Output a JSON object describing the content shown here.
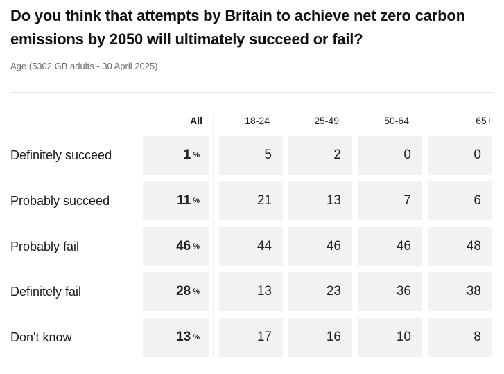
{
  "chart_data": {
    "type": "table",
    "title": "Do you think that attempts by Britain to achieve net zero carbon emissions by 2050 will ultimately succeed or fail?",
    "subtitle": "Age (5302 GB adults - 30 April 2025)",
    "columns": [
      "All",
      "18-24",
      "25-49",
      "50-64",
      "65+"
    ],
    "unit": "%",
    "rows": [
      {
        "label": "Definitely succeed",
        "values": [
          1,
          5,
          2,
          0,
          0
        ]
      },
      {
        "label": "Probably succeed",
        "values": [
          11,
          21,
          13,
          7,
          6
        ]
      },
      {
        "label": "Probably fail",
        "values": [
          46,
          44,
          46,
          46,
          48
        ]
      },
      {
        "label": "Definitely fail",
        "values": [
          28,
          13,
          23,
          36,
          38
        ]
      },
      {
        "label": "Don't know",
        "values": [
          13,
          17,
          16,
          10,
          8
        ]
      }
    ]
  }
}
